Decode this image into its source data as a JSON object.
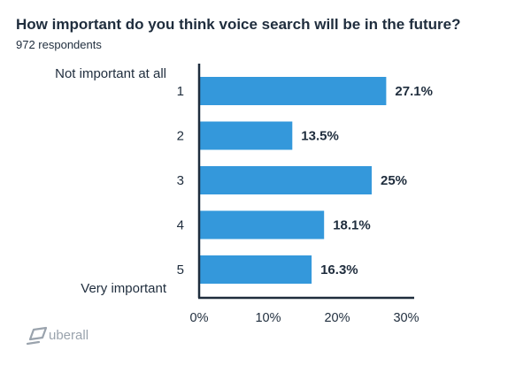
{
  "colors": {
    "bar": "#3498db",
    "text": "#1f2d3d",
    "axis": "#1f2d3d",
    "brand": "#9aa3ad"
  },
  "brand": {
    "name": "uberall",
    "icon": "uberall-logo-icon"
  },
  "chart_data": {
    "type": "bar",
    "orientation": "horizontal",
    "title": "How important do you think voice search will be in the future?",
    "subtitle": "972 respondents",
    "categories": [
      "1",
      "2",
      "3",
      "4",
      "5"
    ],
    "values": [
      27.1,
      13.5,
      25,
      18.1,
      16.3
    ],
    "value_labels": [
      "27.1%",
      "13.5%",
      "25%",
      "18.1%",
      "16.3%"
    ],
    "scale_anchors": {
      "top": "Not important at all",
      "bottom": "Very important"
    },
    "xlim": [
      0,
      30
    ],
    "xticks": [
      0,
      10,
      20,
      30
    ],
    "xtick_labels": [
      "0%",
      "10%",
      "20%",
      "30%"
    ],
    "xlabel": "",
    "ylabel": "",
    "grid": false,
    "legend": false
  }
}
